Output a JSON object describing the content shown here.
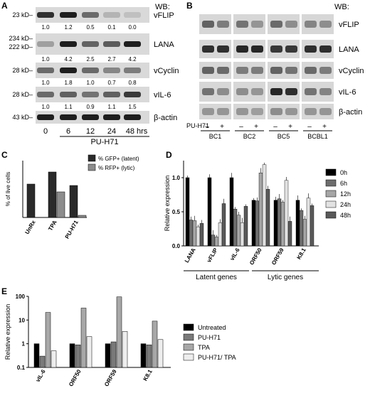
{
  "panel_a": {
    "letter": "A",
    "wb": "WB:",
    "blots": [
      {
        "kd": [
          "23 kD"
        ],
        "protein": "vFLIP",
        "quant": [
          "1.0",
          "1.2",
          "0.5",
          "0.1",
          "0.0"
        ]
      },
      {
        "kd": [
          "234 kD",
          "222 kD"
        ],
        "protein": "LANA",
        "quant": [
          "1.0",
          "4.2",
          "2.5",
          "2.7",
          "4.2"
        ]
      },
      {
        "kd": [
          "28 kD"
        ],
        "protein": "vCyclin",
        "quant": [
          "1.0",
          "1.8",
          "1.0",
          "0.7",
          "0.8"
        ]
      },
      {
        "kd": [
          "28 kD"
        ],
        "protein": "vIL-6",
        "quant": [
          "1.0",
          "1.1",
          "0.9",
          "1.1",
          "1.5"
        ]
      },
      {
        "kd": [
          "43 kD"
        ],
        "protein": "β-actin",
        "quant": []
      }
    ],
    "timepoints": [
      "0",
      "6",
      "12",
      "24",
      "48 hrs"
    ],
    "drug": "PU-H71"
  },
  "panel_b": {
    "letter": "B",
    "wb": "WB:",
    "proteins": [
      "vFLIP",
      "LANA",
      "vCyclin",
      "vIL-6",
      "β-actin"
    ],
    "treatment_label": "PU-H71",
    "signs": [
      "–",
      "+"
    ],
    "cell_lines": [
      "BC1",
      "BC2",
      "BC5",
      "BCBL1"
    ]
  },
  "panel_c": {
    "letter": "C",
    "chart_data": {
      "type": "bar",
      "categories": [
        "UnRx",
        "TPA",
        "PU-H71"
      ],
      "series": [
        {
          "name": "% GFP+ (latent)",
          "values": [
            47,
            64,
            45
          ],
          "color": "#2a2a2a"
        },
        {
          "name": "% RFP+ (lytic)",
          "values": [
            0,
            36,
            3
          ],
          "color": "#8c8c8c"
        }
      ],
      "ylabel": "% of live cells",
      "ylim": [
        0,
        80
      ]
    }
  },
  "panel_d": {
    "letter": "D",
    "chart_data": {
      "type": "bar",
      "categories": [
        "LANA",
        "vFLIP",
        "vIL-6",
        "ORF50",
        "ORF59",
        "K8.1"
      ],
      "series": [
        {
          "name": "0h",
          "values": [
            1.0,
            1.0,
            1.0,
            0.67,
            0.67,
            0.67
          ],
          "color": "#000000"
        },
        {
          "name": "6h",
          "values": [
            0.38,
            0.16,
            0.54,
            0.66,
            0.69,
            0.52
          ],
          "color": "#6e6e6e"
        },
        {
          "name": "12h",
          "values": [
            0.37,
            0.13,
            0.45,
            1.07,
            0.64,
            0.39
          ],
          "color": "#a6a6a6"
        },
        {
          "name": "24h",
          "values": [
            0.28,
            0.34,
            0.34,
            1.19,
            0.96,
            0.7
          ],
          "color": "#e2e2e2"
        },
        {
          "name": "48h",
          "values": [
            0.33,
            0.62,
            0.58,
            0.83,
            0.36,
            0.59
          ],
          "color": "#595959"
        }
      ],
      "ylabel": "Relative expression",
      "ylim": [
        0,
        1.25
      ],
      "yticks": [
        "0.0",
        "0.5",
        "1.0"
      ],
      "groups": [
        "Latent genes",
        "Lytic genes"
      ]
    }
  },
  "panel_e": {
    "letter": "E",
    "chart_data": {
      "type": "bar",
      "categories": [
        "vIL-6",
        "ORF50",
        "ORF59",
        "K8.1"
      ],
      "series": [
        {
          "name": "Untreated",
          "values": [
            1.0,
            1.0,
            1.0,
            1.0
          ],
          "color": "#000000"
        },
        {
          "name": "PU-H71",
          "values": [
            0.3,
            0.9,
            1.2,
            0.9
          ],
          "color": "#7a7a7a"
        },
        {
          "name": "TPA",
          "values": [
            21,
            32,
            95,
            9
          ],
          "color": "#a8a8a8"
        },
        {
          "name": "PU-H71/ TPA",
          "values": [
            0.5,
            2.0,
            3.3,
            1.5
          ],
          "color": "#eeeeee"
        }
      ],
      "ylabel": "Relative expression",
      "yscale": "log",
      "ylim": [
        0.1,
        100
      ],
      "yticks": [
        "0.1",
        "1",
        "10",
        "100"
      ]
    }
  }
}
